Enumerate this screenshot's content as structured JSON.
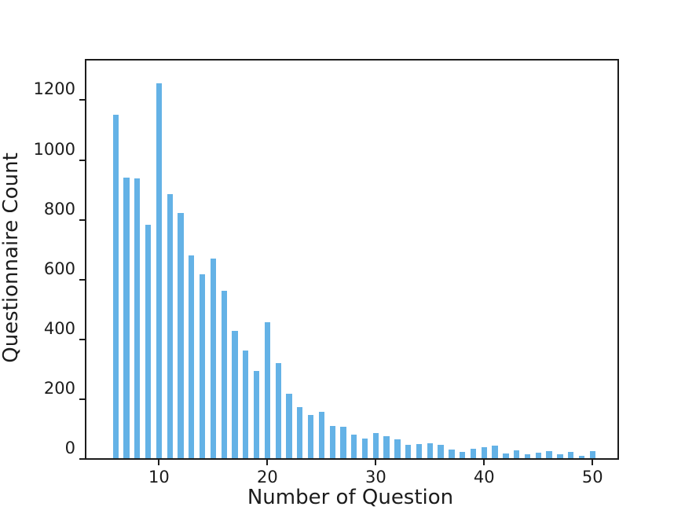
{
  "chart_data": {
    "type": "bar",
    "title": "",
    "xlabel": "Number of Question",
    "ylabel": "Questionnaire Count",
    "x": [
      6,
      7,
      8,
      9,
      10,
      11,
      12,
      13,
      14,
      15,
      16,
      17,
      18,
      19,
      20,
      21,
      22,
      23,
      24,
      25,
      26,
      27,
      28,
      29,
      30,
      31,
      32,
      33,
      34,
      35,
      36,
      37,
      38,
      39,
      40,
      41,
      42,
      43,
      44,
      45,
      46,
      47,
      48,
      49,
      50
    ],
    "values": [
      1148,
      938,
      935,
      780,
      1254,
      883,
      820,
      678,
      616,
      668,
      561,
      426,
      360,
      293,
      454,
      318,
      215,
      170,
      144,
      155,
      107,
      104,
      78,
      66,
      85,
      74,
      64,
      46,
      48,
      51,
      44,
      30,
      21,
      32,
      37,
      43,
      15,
      26,
      13,
      19,
      24,
      12,
      22,
      9,
      24
    ],
    "xlim": [
      3.3,
      52.3
    ],
    "ylim": [
      0,
      1330
    ],
    "xticks": [
      10,
      20,
      30,
      40,
      50
    ],
    "yticks": [
      0,
      200,
      400,
      600,
      800,
      1000,
      1200
    ],
    "bar_width_data": 0.53,
    "bar_color": "#64b2e6",
    "axis_color": "#1c1c1c",
    "grid": false,
    "legend_position": "none"
  }
}
